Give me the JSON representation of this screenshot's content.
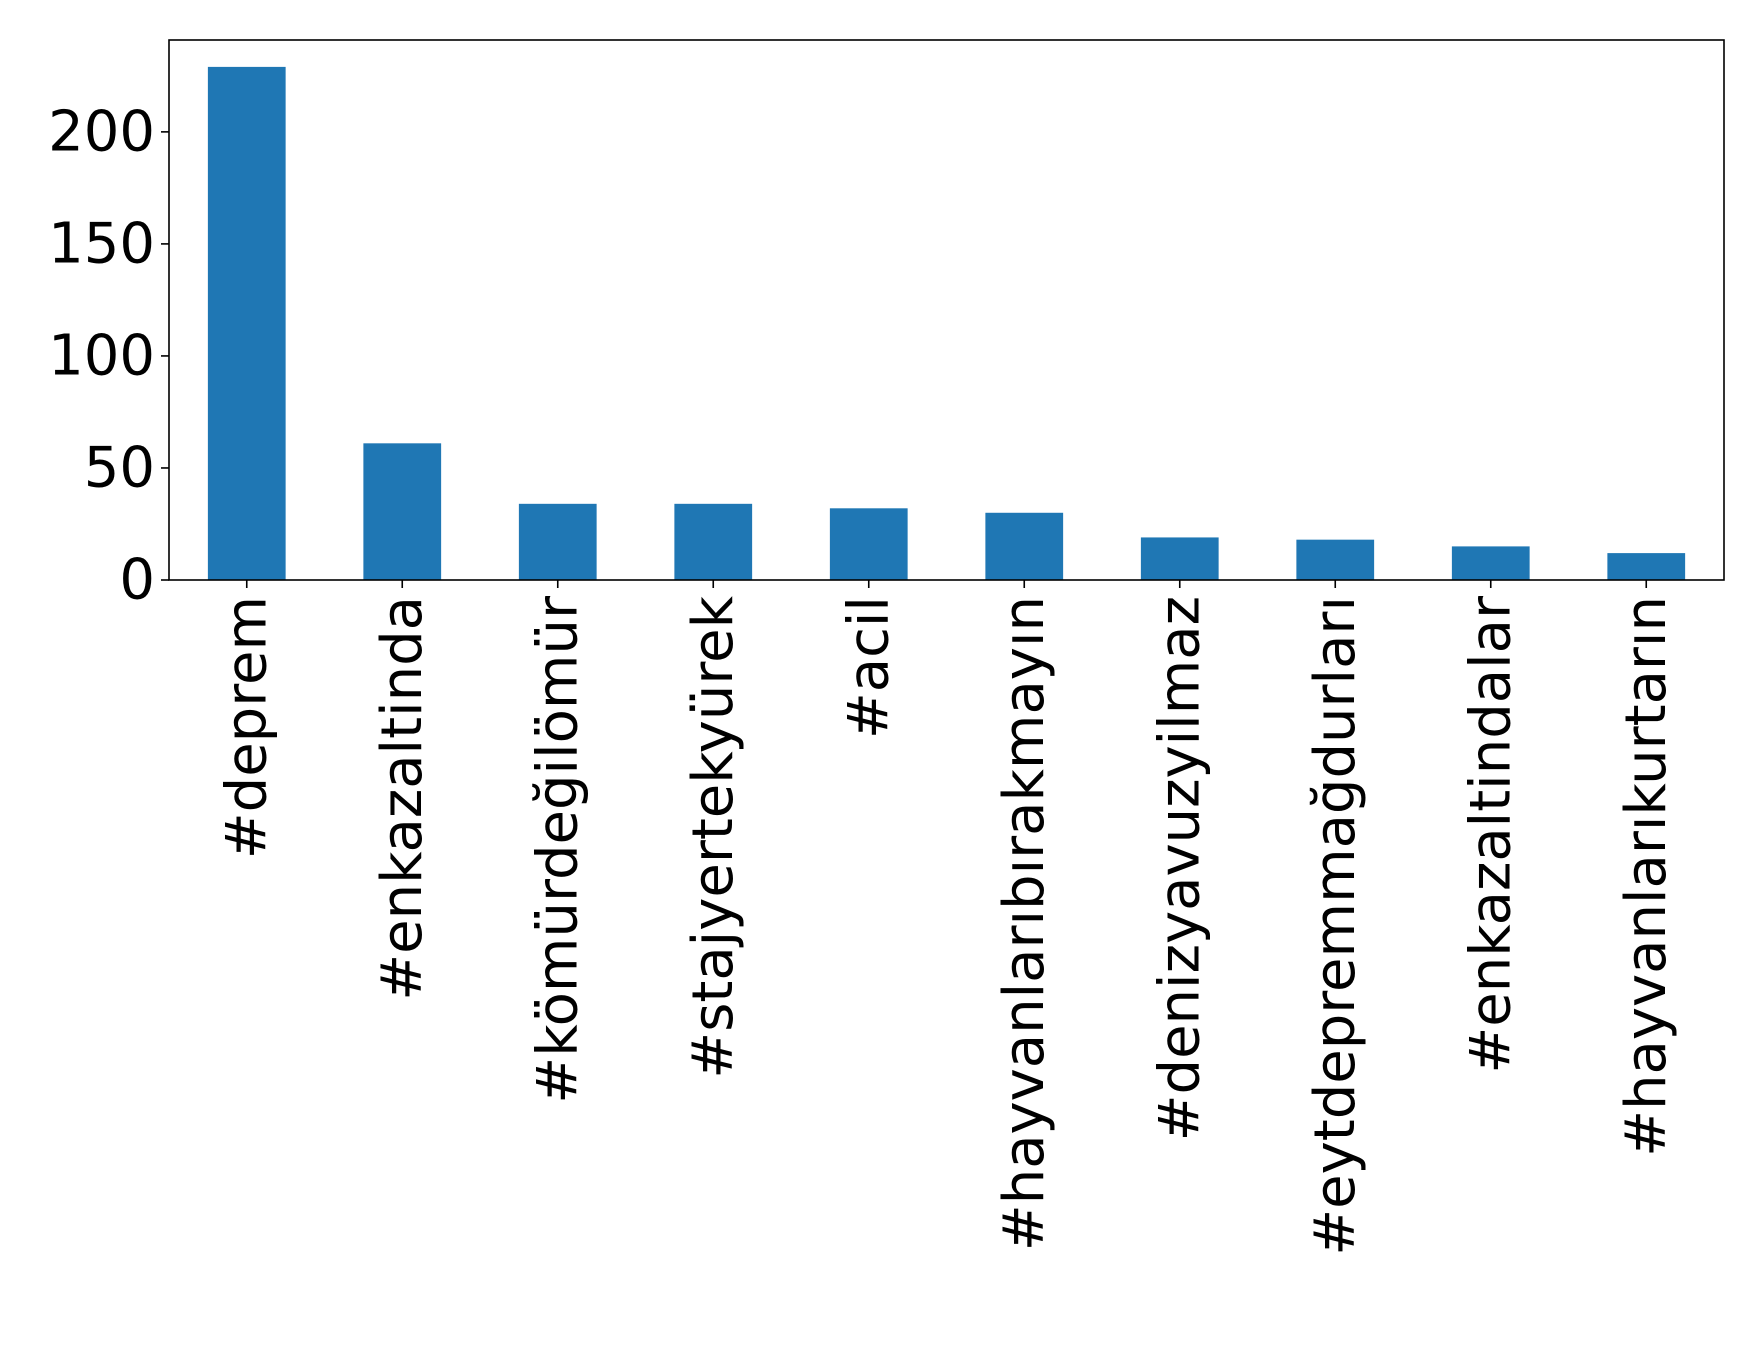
{
  "chart_data": {
    "type": "bar",
    "title": "",
    "xlabel": "",
    "ylabel": "",
    "categories": [
      "#deprem",
      "#enkazaltinda",
      "#kömürdeğilömür",
      "#stajyertekyürek",
      "#acil",
      "#hayvanlarıbırakmayın",
      "#denizyavuzyilmaz",
      "#eytdepremmağdurları",
      "#enkazaltindalar",
      "#hayvanlarıkurtarın"
    ],
    "series": [
      {
        "values": [
          229,
          61,
          34,
          34,
          32,
          30,
          19,
          18,
          15,
          12
        ],
        "color": "#1f77b4"
      }
    ],
    "ylim": [
      0,
      241
    ],
    "yticks": [
      0,
      50,
      100,
      150,
      200
    ],
    "ytick_labels": [
      "0",
      "50",
      "100",
      "150",
      "200"
    ],
    "grid": false,
    "legend": "none"
  }
}
